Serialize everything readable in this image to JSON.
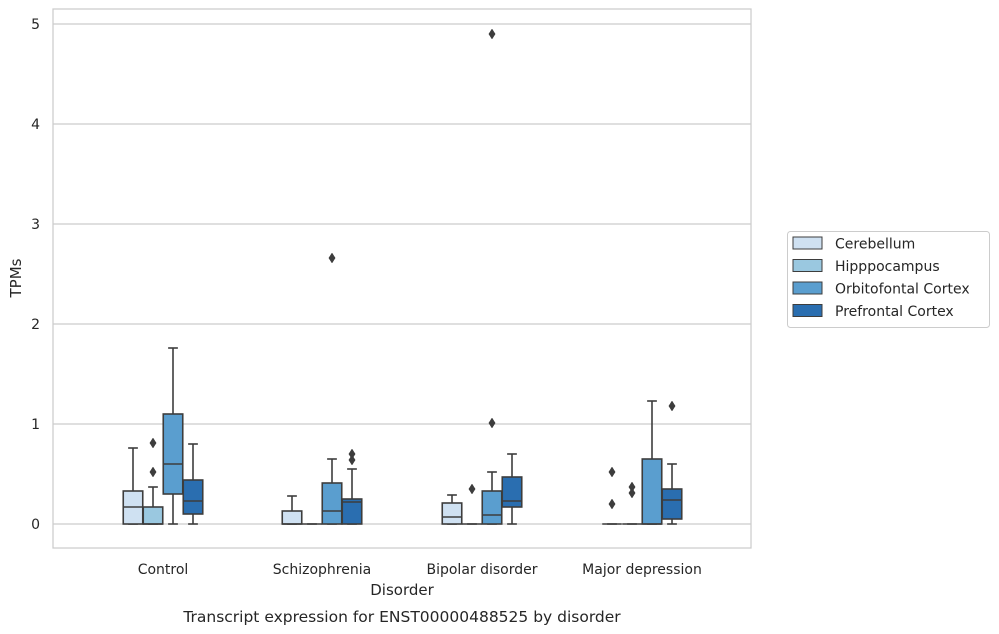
{
  "chart_data": {
    "type": "box",
    "title": "",
    "caption": "Transcript expression for ENST00000488525 by disorder",
    "xlabel": "Disorder",
    "ylabel": "TPMs",
    "ylim": [
      -0.24,
      5.16
    ],
    "yticks": [
      0,
      1,
      2,
      3,
      4,
      5
    ],
    "grid": true,
    "legend_position": "right",
    "categories": [
      "Control",
      "Schizophrenia",
      "Bipolar disorder",
      "Major depression"
    ],
    "series": [
      {
        "name": "Cerebellum",
        "color": "#cfe1f2",
        "boxes": [
          {
            "whisker_low": 0,
            "q1": 0,
            "median": 0.17,
            "q3": 0.33,
            "whisker_high": 0.76,
            "outliers": []
          },
          {
            "whisker_low": 0,
            "q1": 0,
            "median": 0,
            "q3": 0.13,
            "whisker_high": 0.28,
            "outliers": []
          },
          {
            "whisker_low": 0,
            "q1": 0,
            "median": 0.07,
            "q3": 0.21,
            "whisker_high": 0.29,
            "outliers": []
          },
          {
            "whisker_low": 0,
            "q1": 0,
            "median": 0,
            "q3": 0,
            "whisker_high": 0,
            "outliers": [
              0.52,
              0.2
            ]
          }
        ]
      },
      {
        "name": "Hipppocampus",
        "color": "#9ac8e0",
        "boxes": [
          {
            "whisker_low": 0,
            "q1": 0,
            "median": 0,
            "q3": 0.17,
            "whisker_high": 0.37,
            "outliers": [
              0.81,
              0.52
            ]
          },
          {
            "whisker_low": 0,
            "q1": 0,
            "median": 0,
            "q3": 0,
            "whisker_high": 0,
            "outliers": []
          },
          {
            "whisker_low": 0,
            "q1": 0,
            "median": 0,
            "q3": 0,
            "whisker_high": 0,
            "outliers": [
              0.35
            ]
          },
          {
            "whisker_low": 0,
            "q1": 0,
            "median": 0,
            "q3": 0,
            "whisker_high": 0,
            "outliers": [
              0.37,
              0.31
            ]
          }
        ]
      },
      {
        "name": "Orbitofontal Cortex",
        "color": "#5a9ecf",
        "boxes": [
          {
            "whisker_low": 0,
            "q1": 0.3,
            "median": 0.6,
            "q3": 1.1,
            "whisker_high": 1.76,
            "outliers": []
          },
          {
            "whisker_low": 0,
            "q1": 0,
            "median": 0.13,
            "q3": 0.41,
            "whisker_high": 0.65,
            "outliers": [
              2.66
            ]
          },
          {
            "whisker_low": 0,
            "q1": 0,
            "median": 0.09,
            "q3": 0.33,
            "whisker_high": 0.52,
            "outliers": [
              4.9,
              1.01
            ]
          },
          {
            "whisker_low": 0,
            "q1": 0,
            "median": 0,
            "q3": 0.65,
            "whisker_high": 1.23,
            "outliers": []
          }
        ]
      },
      {
        "name": "Prefrontal Cortex",
        "color": "#2a6eb0",
        "boxes": [
          {
            "whisker_low": 0,
            "q1": 0.1,
            "median": 0.23,
            "q3": 0.44,
            "whisker_high": 0.8,
            "outliers": []
          },
          {
            "whisker_low": 0,
            "q1": 0,
            "median": 0.22,
            "q3": 0.25,
            "whisker_high": 0.55,
            "outliers": [
              0.7,
              0.64
            ]
          },
          {
            "whisker_low": 0,
            "q1": 0.17,
            "median": 0.23,
            "q3": 0.47,
            "whisker_high": 0.7,
            "outliers": []
          },
          {
            "whisker_low": 0,
            "q1": 0.05,
            "median": 0.24,
            "q3": 0.35,
            "whisker_high": 0.6,
            "outliers": [
              1.18
            ]
          }
        ]
      }
    ]
  }
}
